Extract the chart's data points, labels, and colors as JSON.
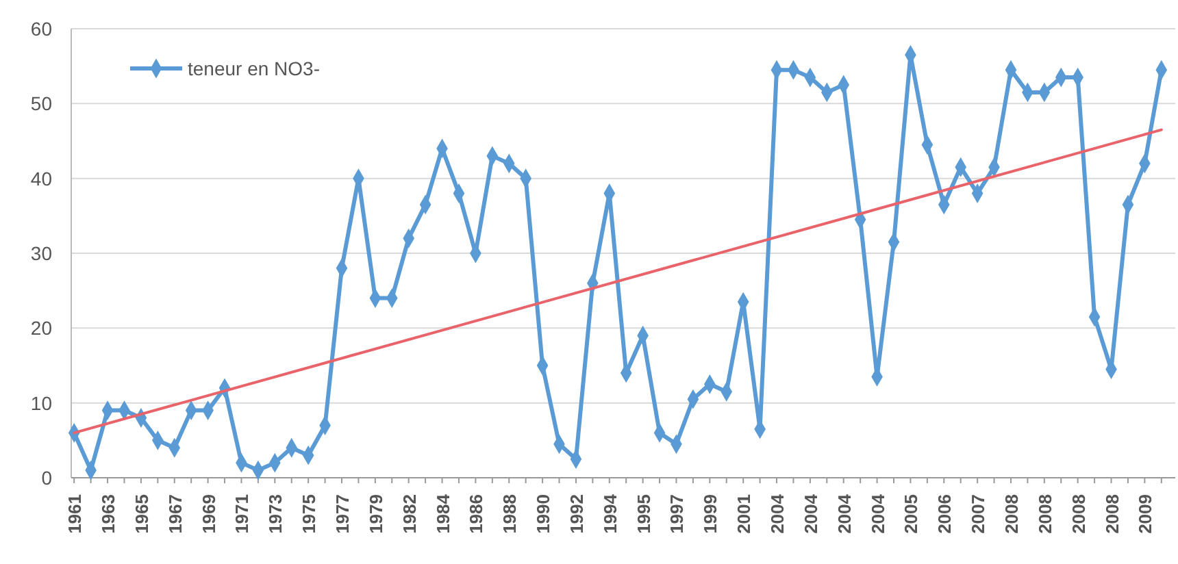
{
  "chart_data": {
    "type": "line",
    "categories": [
      "1961",
      null,
      "1963",
      null,
      "1965",
      null,
      "1967",
      null,
      "1969",
      null,
      "1971",
      null,
      "1973",
      null,
      "1975",
      null,
      "1977",
      null,
      "1979",
      null,
      "1982",
      null,
      "1984",
      null,
      "1986",
      null,
      "1988",
      null,
      "1990",
      null,
      "1992",
      null,
      "1994",
      null,
      "1995",
      null,
      "1997",
      null,
      "1999",
      null,
      "2001",
      null,
      "2004",
      null,
      "2004",
      null,
      "2004",
      null,
      "2004",
      null,
      "2005",
      null,
      "2006",
      null,
      "2007",
      null,
      "2008",
      null,
      "2008",
      null,
      "2008",
      null,
      "2008",
      null,
      "2009",
      null
    ],
    "series": [
      {
        "name": "teneur en NO3-",
        "color": "#5b9bd5",
        "marker": "diamond",
        "values": [
          6,
          1,
          9,
          9,
          8,
          5,
          4,
          9,
          9,
          12,
          2,
          1,
          2,
          4,
          3,
          7,
          28,
          40,
          24,
          24,
          32,
          36.5,
          44,
          38,
          30,
          43,
          42,
          40,
          15,
          4.5,
          2.5,
          26,
          38,
          14,
          19,
          6,
          4.5,
          10.5,
          12.5,
          11.5,
          23.5,
          6.5,
          54.5,
          54.5,
          53.5,
          51.5,
          52.5,
          34.5,
          13.5,
          31.5,
          56.5,
          44.5,
          36.5,
          41.5,
          38,
          41.5,
          54.5,
          51.5,
          51.5,
          53.5,
          53.5,
          21.5,
          14.5,
          36.5,
          42,
          54.5
        ]
      },
      {
        "type": "line",
        "color": "#e8636a",
        "marker": "none",
        "values": [
          6,
          null,
          null,
          null,
          null,
          null,
          null,
          null,
          null,
          null,
          null,
          null,
          null,
          null,
          null,
          null,
          null,
          null,
          null,
          null,
          null,
          null,
          null,
          null,
          null,
          null,
          null,
          null,
          null,
          null,
          null,
          null,
          null,
          null,
          null,
          null,
          null,
          null,
          null,
          null,
          null,
          null,
          null,
          null,
          null,
          null,
          null,
          null,
          null,
          null,
          null,
          null,
          null,
          null,
          null,
          null,
          null,
          null,
          null,
          null,
          null,
          null,
          null,
          null,
          null,
          46.5
        ]
      }
    ],
    "ylim": [
      0,
      60
    ],
    "yticks": [
      0,
      10,
      20,
      30,
      40,
      50,
      60
    ],
    "grid": "y",
    "legend": "top left"
  }
}
